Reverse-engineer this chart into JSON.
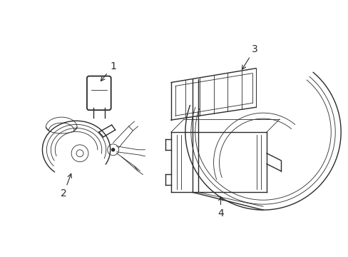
{
  "background_color": "#ffffff",
  "line_color": "#2a2a2a",
  "lw": 1.0,
  "tlw": 0.6,
  "label_fontsize": 9,
  "figsize": [
    4.89,
    3.6
  ],
  "dpi": 100
}
